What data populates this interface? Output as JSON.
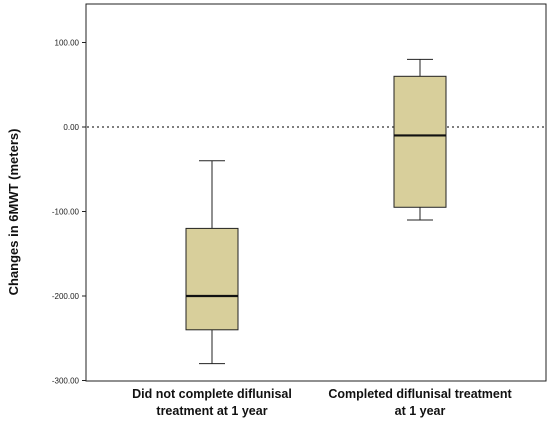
{
  "chart_data": {
    "type": "boxplot",
    "ylabel": "Changes in 6MWT (meters)",
    "ylim": [
      -300,
      110
    ],
    "yticks": [
      {
        "value": 100,
        "label": "100.00"
      },
      {
        "value": 0,
        "label": "0.00"
      },
      {
        "value": -100,
        "label": "-100.00"
      },
      {
        "value": -200,
        "label": "-200.00"
      },
      {
        "value": -300,
        "label": "-300.00"
      }
    ],
    "reference_line": {
      "value": 0,
      "style": "dotted"
    },
    "categories": [
      [
        "Did not complete diflunisal",
        "treatment at 1 year"
      ],
      [
        "Completed diflunisal treatment",
        "at 1 year"
      ]
    ],
    "boxes": [
      {
        "min": -280,
        "q1": -240,
        "median": -200,
        "q3": -120,
        "max": -40
      },
      {
        "min": -110,
        "q1": -95,
        "median": -10,
        "q3": 60,
        "max": 80
      }
    ],
    "colors": {
      "box_fill": "#d8cf9b",
      "stroke": "#222222",
      "frame": "#222222"
    }
  }
}
